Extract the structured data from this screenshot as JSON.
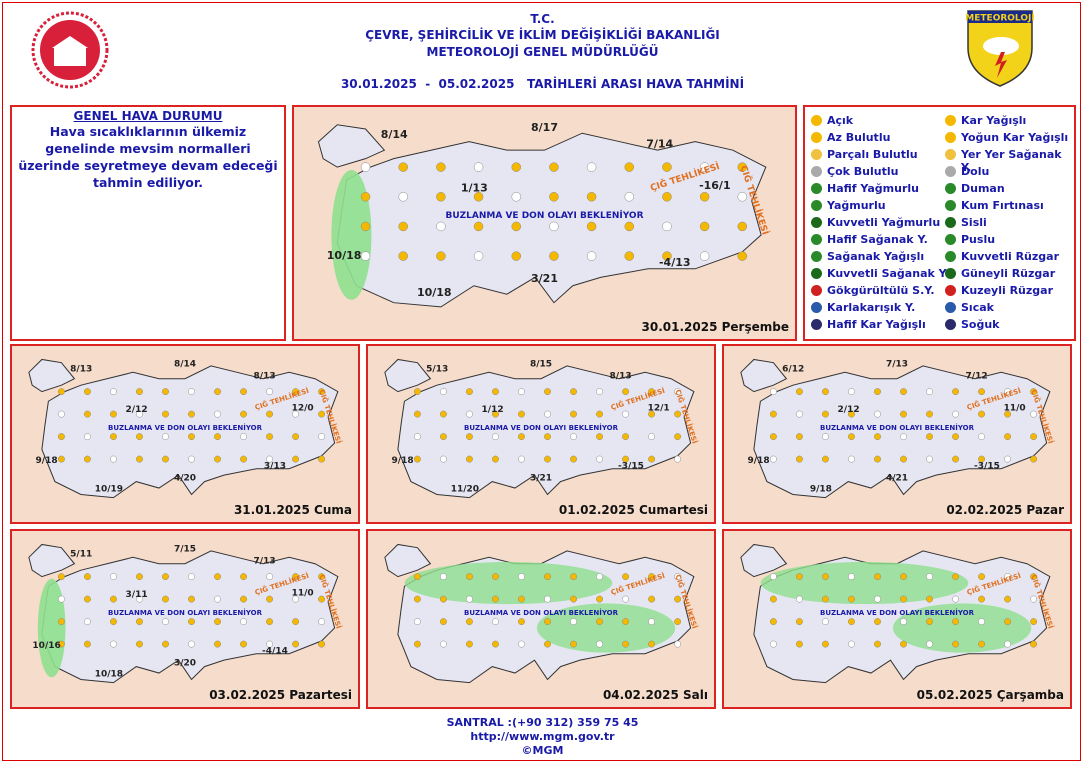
{
  "header": {
    "lines": [
      "T.C.",
      "ÇEVRE, ŞEHİRCİLİK VE İKLİM DEĞİŞİKLİĞİ BAKANLIĞI",
      "METEOROLOJİ GENEL MÜDÜRLÜĞÜ",
      "30.01.2025  -  05.02.2025   TARİHLERİ ARASI HAVA TAHMİNİ"
    ],
    "logo_right": "METEOROLOJİ"
  },
  "general": {
    "title": "GENEL HAVA DURUMU",
    "text": "Hava sıcaklıklarının ülkemiz genelinde mevsim normalleri üzerinde seyretmeye devam edeceği tahmin ediliyor."
  },
  "maps": [
    {
      "date": "30.01.2025 Perşembe",
      "temps": [
        "8/14",
        "8/17",
        "7/14",
        "1/13",
        "-16/1",
        "10/18",
        "10/18",
        "3/21",
        "-4/13"
      ],
      "notes": [
        "BUZLANMA VE DON OLAYI BEKLENİYOR",
        "ÇIĞ TEHLİKESİ",
        "ÇIĞ TEHLİKESİ"
      ]
    },
    {
      "date": "31.01.2025 Cuma",
      "temps": [
        "8/13",
        "8/14",
        "8/13",
        "2/12",
        "12/0",
        "9/18",
        "10/19",
        "4/20",
        "3/13"
      ],
      "notes": [
        "BUZLANMA VE DON OLAYI BEKLENİYOR",
        "ÇIĞ TEHLİKESİ",
        "ÇIĞ TEHLİKESİ"
      ]
    },
    {
      "date": "01.02.2025 Cumartesi",
      "temps": [
        "5/13",
        "8/15",
        "8/13",
        "1/12",
        "12/1",
        "9/18",
        "11/20",
        "3/21",
        "-3/15"
      ],
      "notes": [
        "BUZLANMA VE DON OLAYI BEKLENİYOR",
        "ÇIĞ TEHLİKESİ",
        "ÇIĞ TEHLİKESİ"
      ]
    },
    {
      "date": "02.02.2025 Pazar",
      "temps": [
        "6/12",
        "7/13",
        "7/12",
        "2/12",
        "11/0",
        "9/18",
        "9/18",
        "4/21",
        "-3/15"
      ],
      "notes": [
        "BUZLANMA VE DON OLAYI BEKLENİYOR",
        "ÇIĞ TEHLİKESİ",
        "ÇIĞ TEHLİKESİ"
      ]
    },
    {
      "date": "03.02.2025 Pazartesi",
      "temps": [
        "5/11",
        "7/15",
        "7/13",
        "3/11",
        "11/0",
        "10/16",
        "10/18",
        "3/20",
        "-4/14"
      ],
      "notes": [
        "BUZLANMA VE DON OLAYI BEKLENİYOR",
        "ÇIĞ TEHLİKESİ",
        "ÇIĞ TEHLİKESİ"
      ]
    },
    {
      "date": "04.02.2025 Salı",
      "temps": [],
      "notes": [
        "BUZLANMA VE DON OLAYI BEKLENİYOR",
        "ÇIĞ TEHLİKESİ",
        "ÇIĞ TEHLİKESİ"
      ]
    },
    {
      "date": "05.02.2025 Çarşamba",
      "temps": [],
      "notes": [
        "BUZLANMA VE DON OLAYI BEKLENİYOR",
        "ÇIĞ TEHLİKESİ",
        "ÇIĞ TEHLİKESİ"
      ]
    }
  ],
  "legend": [
    "Açık",
    "Az Bulutlu",
    "Parçalı Bulutlu",
    "Çok Bulutlu",
    "Hafif Yağmurlu",
    "Yağmurlu",
    "Kuvvetli Yağmurlu",
    "Hafif Sağanak Y.",
    "Sağanak Yağışlı",
    "Kuvvetli Sağanak Y",
    "Gökgürültülü S.Y.",
    "Karlakarışık Y.",
    "Hafif Kar Yağışlı",
    "Kar Yağışlı",
    "Yoğun Kar Yağışlı",
    "Yer Yer Sağanak Y.",
    "Dolu",
    "Duman",
    "Kum Fırtınası",
    "Sisli",
    "Puslu",
    "Kuvvetli Rüzgar",
    "Güneyli Rüzgar",
    "Kuzeyli Rüzgar",
    "Sıcak",
    "Soğuk"
  ],
  "footer": [
    "SANTRAL :(+90 312) 359 75 45",
    "http://www.mgm.gov.tr",
    "©MGM"
  ]
}
